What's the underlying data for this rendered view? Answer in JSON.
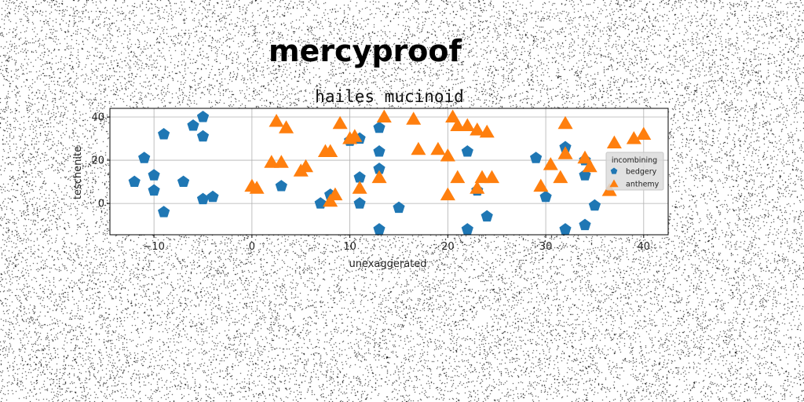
{
  "header": {
    "text": "mercyproof"
  },
  "chart_data": {
    "type": "scatter",
    "title": "hailes mucinoid",
    "xlabel": "unexaggerated",
    "ylabel": "teschenite",
    "xlim": [
      -14.5,
      42.5
    ],
    "ylim": [
      -14.5,
      44
    ],
    "xticks": [
      -10,
      0,
      10,
      20,
      30,
      40
    ],
    "yticks": [
      0,
      20,
      40
    ],
    "grid": true,
    "legend": {
      "title": "incombining",
      "placement": "center-right"
    },
    "series": [
      {
        "name": "bedgery",
        "marker": "pentagon",
        "color": "#1f77b4",
        "points": [
          [
            -12,
            10
          ],
          [
            -11,
            21
          ],
          [
            -10,
            13
          ],
          [
            -10,
            6
          ],
          [
            -9,
            32
          ],
          [
            -9,
            -4
          ],
          [
            -7,
            10
          ],
          [
            -6,
            36
          ],
          [
            -5,
            40
          ],
          [
            -5,
            31
          ],
          [
            -5,
            2
          ],
          [
            -4,
            3
          ],
          [
            3,
            8
          ],
          [
            7,
            0
          ],
          [
            8,
            4
          ],
          [
            10,
            29
          ],
          [
            11,
            30
          ],
          [
            11,
            12
          ],
          [
            11,
            0
          ],
          [
            13,
            35
          ],
          [
            13,
            24
          ],
          [
            13,
            16
          ],
          [
            13,
            -12
          ],
          [
            15,
            -2
          ],
          [
            22,
            24
          ],
          [
            22,
            -12
          ],
          [
            23,
            6
          ],
          [
            24,
            -6
          ],
          [
            29,
            21
          ],
          [
            30,
            3
          ],
          [
            32,
            26
          ],
          [
            32,
            -12
          ],
          [
            34,
            20
          ],
          [
            34,
            13
          ],
          [
            34,
            -10
          ],
          [
            35,
            -1
          ]
        ]
      },
      {
        "name": "anthemy",
        "marker": "triangle",
        "color": "#ff7f0e",
        "points": [
          [
            0,
            8
          ],
          [
            0.5,
            7
          ],
          [
            2,
            19
          ],
          [
            2.5,
            38
          ],
          [
            3,
            19
          ],
          [
            3.5,
            35
          ],
          [
            5,
            15
          ],
          [
            5.5,
            17
          ],
          [
            7.5,
            24
          ],
          [
            8,
            24
          ],
          [
            8,
            1
          ],
          [
            8.5,
            4
          ],
          [
            9,
            37
          ],
          [
            10,
            30
          ],
          [
            10.5,
            31
          ],
          [
            11,
            7
          ],
          [
            13,
            12
          ],
          [
            13.5,
            40
          ],
          [
            16.5,
            39
          ],
          [
            17,
            25
          ],
          [
            19,
            25
          ],
          [
            20,
            22
          ],
          [
            20,
            4
          ],
          [
            20.5,
            40
          ],
          [
            21,
            36
          ],
          [
            21,
            12
          ],
          [
            22,
            36
          ],
          [
            23,
            34
          ],
          [
            23,
            7
          ],
          [
            23.5,
            12
          ],
          [
            24,
            33
          ],
          [
            24.5,
            12
          ],
          [
            29.5,
            8
          ],
          [
            30.5,
            18
          ],
          [
            31.5,
            12
          ],
          [
            32,
            37
          ],
          [
            32,
            23
          ],
          [
            34,
            21
          ],
          [
            34.5,
            17
          ],
          [
            36.5,
            6
          ],
          [
            37,
            28
          ],
          [
            39,
            30
          ],
          [
            40,
            32
          ]
        ]
      }
    ]
  }
}
